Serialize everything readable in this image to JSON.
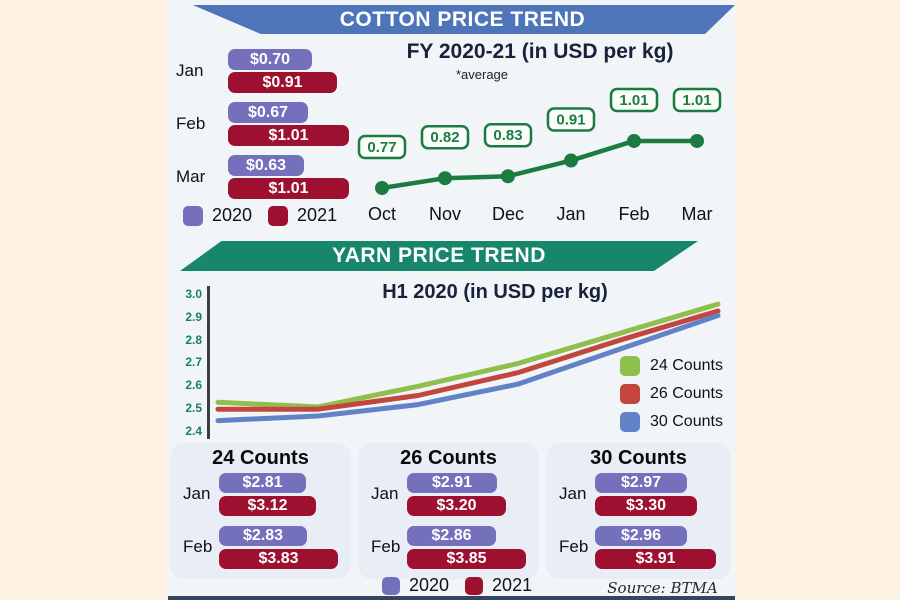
{
  "header": {
    "cotton_banner": "COTTON PRICE TREND",
    "yarn_banner": "YARN PRICE TREND"
  },
  "source": "Source: BTMA",
  "colors": {
    "background_peach": "#fdf2e4",
    "content_background": "#f1f5f7",
    "panel_background": "#e9edf5",
    "purple_2020": "#7470bb",
    "crimson_2021": "#9d1030",
    "cotton_banner_blue": "#4e74b9",
    "yarn_banner_teal": "#17866b",
    "cotton_line_green": "#1b7b41",
    "ytick_teal": "#17806a",
    "footer_bar": "#34465c"
  },
  "chart_data": [
    {
      "id": "cotton_bars",
      "type": "bar",
      "title": "Cotton price by month, 2020 vs 2021 (USD per kg)",
      "categories": [
        "Jan",
        "Feb",
        "Mar"
      ],
      "series": [
        {
          "name": "2020",
          "color": "#7470bb",
          "values": [
            0.7,
            0.67,
            0.63
          ],
          "labels": [
            "$0.70",
            "$0.67",
            "$0.63"
          ]
        },
        {
          "name": "2021",
          "color": "#9d1030",
          "values": [
            0.91,
            1.01,
            1.01
          ],
          "labels": [
            "$0.91",
            "$1.01",
            "$1.01"
          ]
        }
      ],
      "legend": [
        "2020",
        "2021"
      ]
    },
    {
      "id": "cotton_line",
      "type": "line",
      "title": "FY 2020-21 (in USD per kg)",
      "subtitle": "*average",
      "x": [
        "Oct",
        "Nov",
        "Dec",
        "Jan",
        "Feb",
        "Mar"
      ],
      "values": [
        0.77,
        0.82,
        0.83,
        0.91,
        1.01,
        1.01
      ],
      "color": "#1b7b41"
    },
    {
      "id": "yarn_lines",
      "type": "line",
      "title": "H1 2020 (in USD per kg)",
      "ylim": [
        2.4,
        3.0
      ],
      "yticks": [
        "3.0",
        "2.9",
        "2.8",
        "2.7",
        "2.6",
        "2.5",
        "2.4"
      ],
      "grid": false,
      "legend_position": "right-inside",
      "series": [
        {
          "name": "24 Counts",
          "color": "#8fbf4d",
          "values": [
            2.53,
            2.51,
            2.6,
            2.7,
            2.83,
            2.96
          ]
        },
        {
          "name": "26 Counts",
          "color": "#c2463d",
          "values": [
            2.5,
            2.5,
            2.56,
            2.66,
            2.8,
            2.93
          ]
        },
        {
          "name": "30 Counts",
          "color": "#6282c8",
          "values": [
            2.45,
            2.47,
            2.52,
            2.61,
            2.76,
            2.91
          ]
        }
      ]
    },
    {
      "id": "yarn_bars",
      "type": "bar",
      "title": "Yarn price by count, Jan-Feb (USD per kg)",
      "panels": [
        {
          "title": "24 Counts",
          "categories": [
            "Jan",
            "Feb"
          ],
          "series": [
            {
              "name": "2020",
              "color": "#7470bb",
              "values": [
                2.81,
                2.83
              ],
              "labels": [
                "$2.81",
                "$2.83"
              ]
            },
            {
              "name": "2021",
              "color": "#9d1030",
              "values": [
                3.12,
                3.83
              ],
              "labels": [
                "$3.12",
                "$3.83"
              ]
            }
          ]
        },
        {
          "title": "26 Counts",
          "categories": [
            "Jan",
            "Feb"
          ],
          "series": [
            {
              "name": "2020",
              "color": "#7470bb",
              "values": [
                2.91,
                2.86
              ],
              "labels": [
                "$2.91",
                "$2.86"
              ]
            },
            {
              "name": "2021",
              "color": "#9d1030",
              "values": [
                3.2,
                3.85
              ],
              "labels": [
                "$3.20",
                "$3.85"
              ]
            }
          ]
        },
        {
          "title": "30 Counts",
          "categories": [
            "Jan",
            "Feb"
          ],
          "series": [
            {
              "name": "2020",
              "color": "#7470bb",
              "values": [
                2.97,
                2.96
              ],
              "labels": [
                "$2.97",
                "$2.96"
              ]
            },
            {
              "name": "2021",
              "color": "#9d1030",
              "values": [
                3.3,
                3.91
              ],
              "labels": [
                "$3.30",
                "$3.91"
              ]
            }
          ]
        }
      ],
      "legend": [
        "2020",
        "2021"
      ]
    }
  ]
}
